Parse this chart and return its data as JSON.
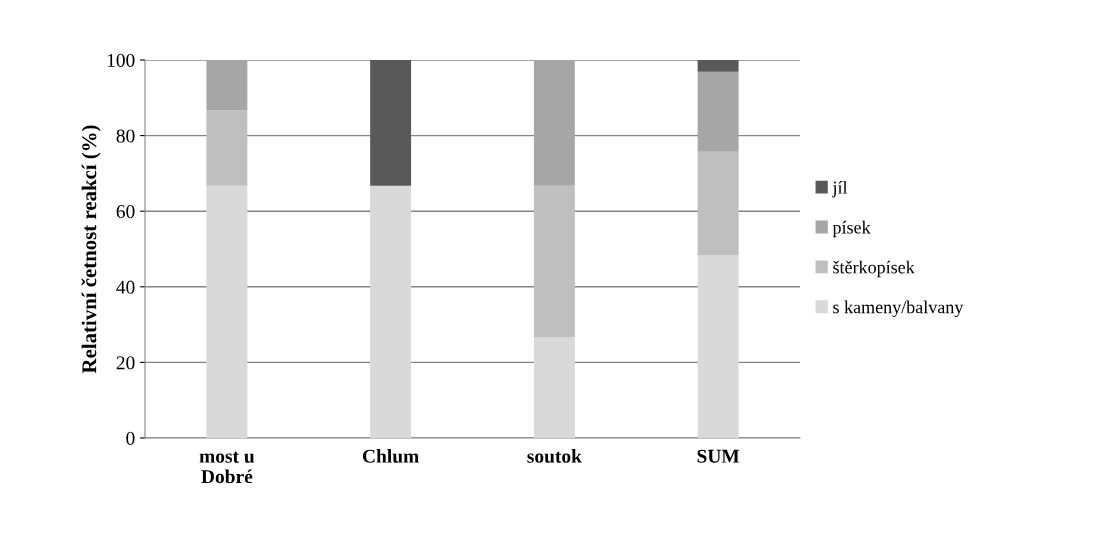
{
  "chart_data": {
    "type": "bar",
    "stacked": true,
    "ylabel": "Relativní četnost reakcí (%)",
    "categories": [
      "most u\nDobré",
      "Chlum",
      "soutok",
      "SUM"
    ],
    "series": [
      {
        "name": "s kameny/balvany",
        "color": "#d9d9d9",
        "values": [
          66.7,
          66.7,
          26.7,
          48.4
        ]
      },
      {
        "name": "štěrkopísek",
        "color": "#bfbfbf",
        "values": [
          20,
          0,
          40,
          27.3
        ]
      },
      {
        "name": "písek",
        "color": "#a6a6a6",
        "values": [
          13.3,
          0,
          33.3,
          21.2
        ]
      },
      {
        "name": "jíl",
        "color": "#595959",
        "values": [
          0,
          33.3,
          0,
          3.1
        ]
      }
    ],
    "ylim": [
      0,
      100
    ],
    "yticks": [
      0,
      20,
      40,
      60,
      80,
      100
    ],
    "grid": "y",
    "legend": "right"
  }
}
